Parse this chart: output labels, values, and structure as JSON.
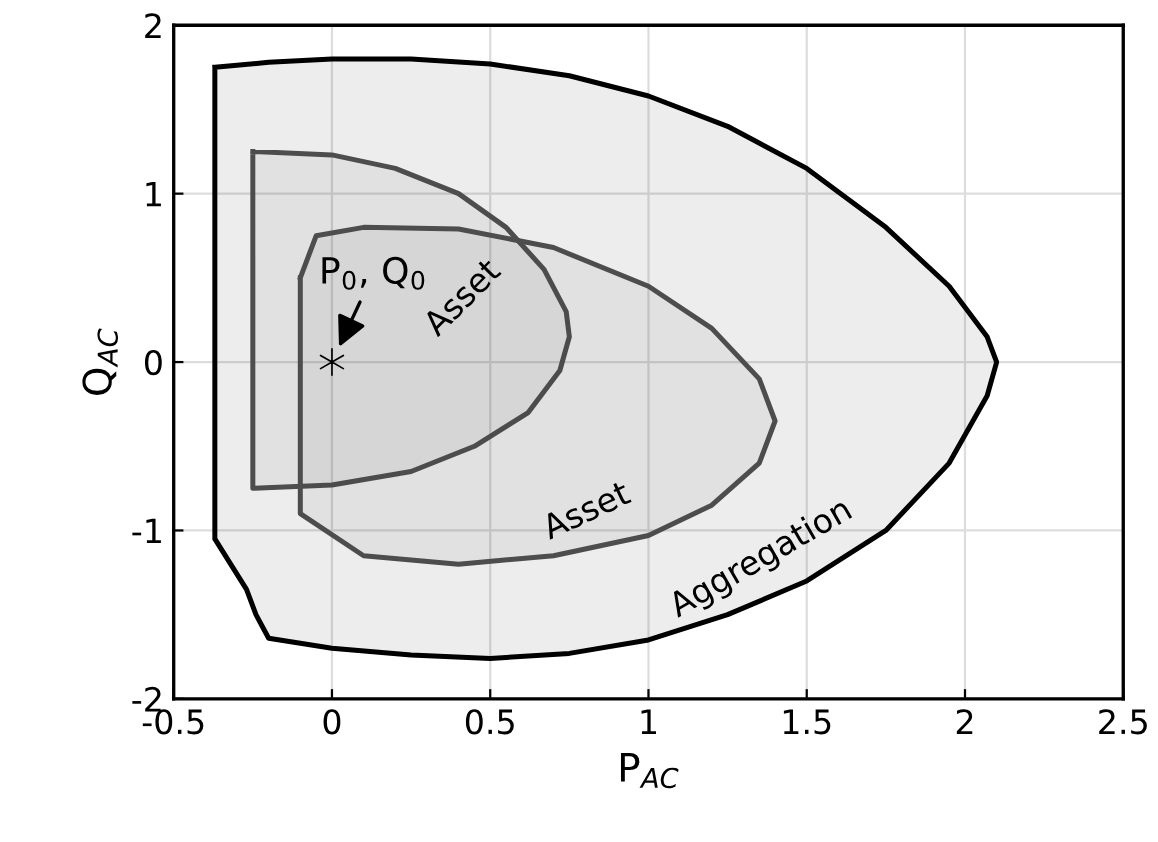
{
  "chart_data": {
    "type": "area",
    "xlabel": "P$_{AC}$",
    "ylabel": "Q$_{AC}$",
    "xlim": [
      -0.5,
      2.5
    ],
    "ylim": [
      -2,
      2
    ],
    "xticks": [
      -0.5,
      0,
      0.5,
      1,
      1.5,
      2,
      2.5
    ],
    "yticks": [
      -2,
      -1,
      0,
      1,
      2
    ],
    "grid": true,
    "series": [
      {
        "name": "Aggregation",
        "color": "#000000",
        "x": [
          -0.37,
          -0.2,
          0,
          0.25,
          0.5,
          0.75,
          1.0,
          1.25,
          1.5,
          1.75,
          1.95,
          2.07,
          2.1,
          2.07,
          1.95,
          1.75,
          1.5,
          1.25,
          1.0,
          0.75,
          0.5,
          0.25,
          0,
          -0.2,
          -0.24,
          -0.27,
          -0.32,
          -0.37,
          -0.37
        ],
        "values": [
          1.75,
          1.78,
          1.8,
          1.8,
          1.77,
          1.7,
          1.58,
          1.4,
          1.15,
          0.8,
          0.45,
          0.15,
          0,
          -0.2,
          -0.6,
          -1.0,
          -1.3,
          -1.5,
          -1.65,
          -1.73,
          -1.76,
          -1.74,
          -1.7,
          -1.64,
          -1.5,
          -1.35,
          -1.2,
          -1.05,
          1.75
        ]
      },
      {
        "name": "Asset",
        "color": "#4d4d4d",
        "x": [
          -0.25,
          0,
          0.2,
          0.4,
          0.55,
          0.67,
          0.74,
          0.75,
          0.72,
          0.62,
          0.45,
          0.25,
          0,
          -0.25,
          -0.25
        ],
        "values": [
          1.25,
          1.23,
          1.15,
          1.0,
          0.8,
          0.55,
          0.3,
          0.15,
          -0.05,
          -0.3,
          -0.5,
          -0.65,
          -0.73,
          -0.75,
          1.25
        ]
      },
      {
        "name": "Asset",
        "color": "#4d4d4d",
        "x": [
          -0.1,
          -0.05,
          0.1,
          0.4,
          0.7,
          1.0,
          1.2,
          1.35,
          1.4,
          1.35,
          1.2,
          1.0,
          0.7,
          0.4,
          0.1,
          -0.1,
          -0.1
        ],
        "values": [
          0.5,
          0.75,
          0.8,
          0.79,
          0.68,
          0.45,
          0.2,
          -0.1,
          -0.35,
          -0.6,
          -0.85,
          -1.03,
          -1.15,
          -1.2,
          -1.15,
          -0.9,
          0.5
        ]
      },
      {
        "type": "scatter",
        "marker": "cross",
        "color": "#000000",
        "x": [
          0
        ],
        "values": [
          0
        ]
      }
    ],
    "annotations": [
      {
        "text": "P$_{0}$, Q$_{0}$",
        "x": 0,
        "y": 0
      }
    ]
  }
}
